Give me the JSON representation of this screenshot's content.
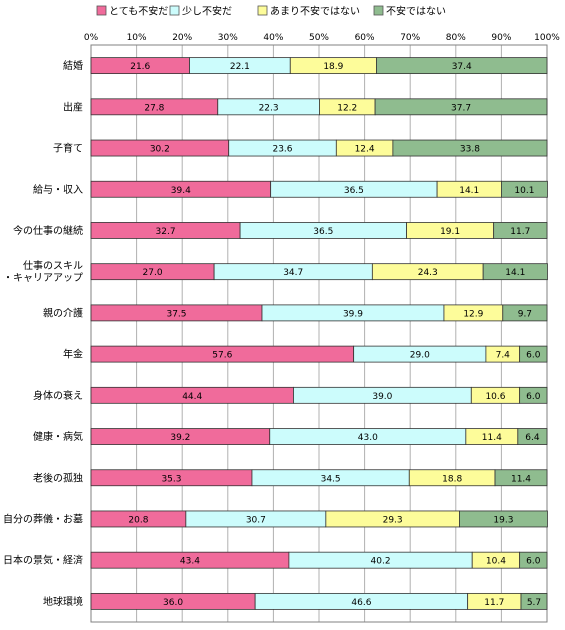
{
  "chart_data": {
    "type": "bar",
    "orientation": "horizontal",
    "stacked": "percent",
    "legend_position": "top",
    "grid": true,
    "xlim": [
      0,
      100
    ],
    "xticks": [
      "0%",
      "10%",
      "20%",
      "30%",
      "40%",
      "50%",
      "60%",
      "70%",
      "80%",
      "90%",
      "100%"
    ],
    "categories": [
      "結婚",
      "出産",
      "子育て",
      "給与・収入",
      "今の仕事の継続",
      [
        "仕事のスキル",
        "・キャリアアップ"
      ],
      "親の介護",
      "年金",
      "身体の衰え",
      "健康・病気",
      "老後の孤独",
      "自分の葬儀・お墓",
      "日本の景気・経済",
      "地球環境"
    ],
    "series": [
      {
        "name": "とても不安だ",
        "color": "#f06b9b",
        "values": [
          21.6,
          27.8,
          30.2,
          39.4,
          32.7,
          27.0,
          37.5,
          57.6,
          44.4,
          39.2,
          35.3,
          20.8,
          43.4,
          36.0
        ]
      },
      {
        "name": "少し不安だ",
        "color": "#ccfcfc",
        "values": [
          22.1,
          22.3,
          23.6,
          36.5,
          36.5,
          34.7,
          39.9,
          29.0,
          39.0,
          43.0,
          34.5,
          30.7,
          40.2,
          46.6
        ]
      },
      {
        "name": "あまり不安ではない",
        "color": "#fdfc9a",
        "values": [
          18.9,
          12.2,
          12.4,
          14.1,
          19.1,
          24.3,
          12.9,
          7.4,
          10.6,
          11.4,
          18.8,
          29.3,
          10.4,
          11.7
        ]
      },
      {
        "name": "不安ではない",
        "color": "#8fbc8f",
        "values": [
          37.4,
          37.7,
          33.8,
          10.1,
          11.7,
          14.1,
          9.7,
          6.0,
          6.0,
          6.4,
          11.4,
          19.3,
          6.0,
          5.7
        ]
      }
    ]
  }
}
